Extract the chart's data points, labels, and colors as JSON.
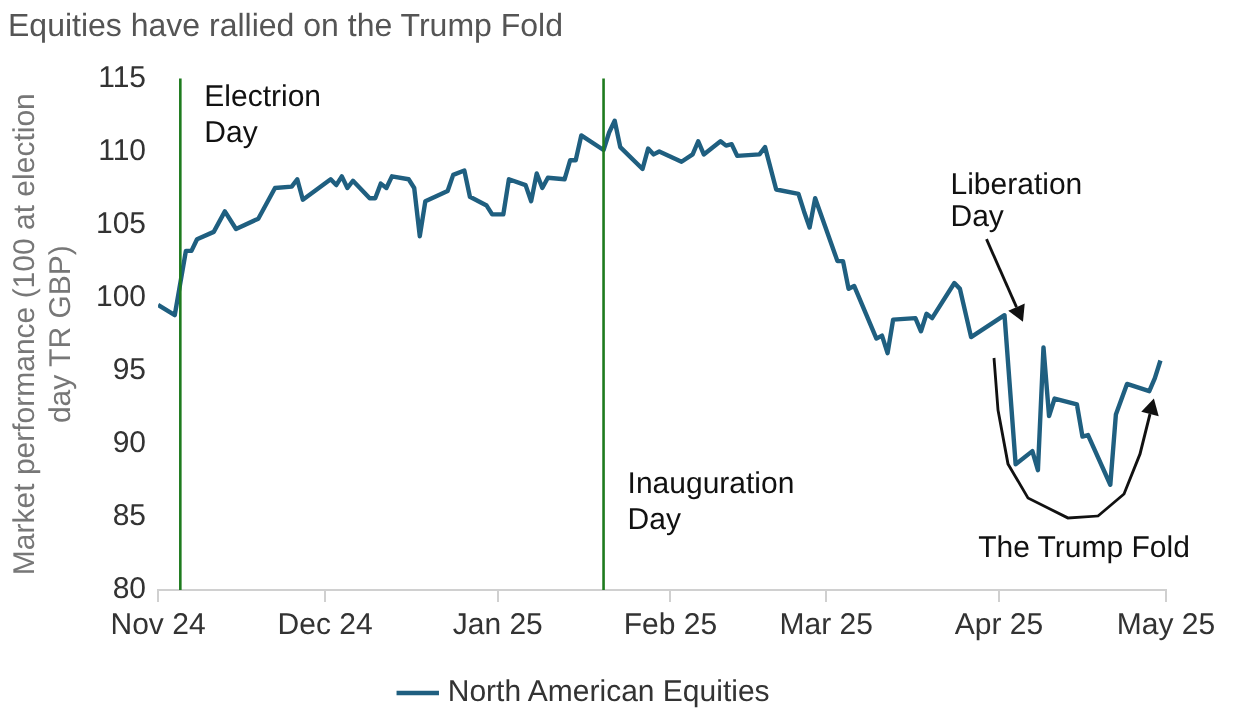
{
  "chart_data": {
    "type": "line",
    "title": "Equities have rallied on the Trump Fold",
    "ylabel": "Market performance (100 at election day TR GBP)",
    "xlim": [
      "2024-11-01",
      "2025-05-01"
    ],
    "xticks": [
      {
        "value": "2024-11-01",
        "label": "Nov 24"
      },
      {
        "value": "2024-12-01",
        "label": "Dec 24"
      },
      {
        "value": "2025-01-01",
        "label": "Jan 25"
      },
      {
        "value": "2025-02-01",
        "label": "Feb 25"
      },
      {
        "value": "2025-03-01",
        "label": "Mar 25"
      },
      {
        "value": "2025-04-01",
        "label": "Apr 25"
      },
      {
        "value": "2025-05-01",
        "label": "May 25"
      }
    ],
    "ylim": [
      80,
      115
    ],
    "yticks": [
      80,
      85,
      90,
      95,
      100,
      105,
      110,
      115
    ],
    "x": [
      "2024-11-01",
      "2024-11-04",
      "2024-11-06",
      "2024-11-07",
      "2024-11-08",
      "2024-11-11",
      "2024-11-13",
      "2024-11-15",
      "2024-11-19",
      "2024-11-22",
      "2024-11-25",
      "2024-11-26",
      "2024-11-27",
      "2024-12-02",
      "2024-12-03",
      "2024-12-04",
      "2024-12-05",
      "2024-12-06",
      "2024-12-09",
      "2024-12-10",
      "2024-12-11",
      "2024-12-12",
      "2024-12-13",
      "2024-12-16",
      "2024-12-17",
      "2024-12-18",
      "2024-12-19",
      "2024-12-23",
      "2024-12-24",
      "2024-12-26",
      "2024-12-27",
      "2024-12-30",
      "2024-12-31",
      "2025-01-02",
      "2025-01-03",
      "2025-01-06",
      "2025-01-07",
      "2025-01-08",
      "2025-01-09",
      "2025-01-10",
      "2025-01-13",
      "2025-01-14",
      "2025-01-15",
      "2025-01-16",
      "2025-01-20",
      "2025-01-21",
      "2025-01-22",
      "2025-01-23",
      "2025-01-27",
      "2025-01-28",
      "2025-01-29",
      "2025-01-30",
      "2025-02-03",
      "2025-02-05",
      "2025-02-06",
      "2025-02-07",
      "2025-02-10",
      "2025-02-11",
      "2025-02-12",
      "2025-02-13",
      "2025-02-17",
      "2025-02-18",
      "2025-02-20",
      "2025-02-24",
      "2025-02-25",
      "2025-02-26",
      "2025-02-27",
      "2025-03-03",
      "2025-03-04",
      "2025-03-05",
      "2025-03-06",
      "2025-03-10",
      "2025-03-11",
      "2025-03-12",
      "2025-03-13",
      "2025-03-17",
      "2025-03-18",
      "2025-03-19",
      "2025-03-20",
      "2025-03-24",
      "2025-03-25",
      "2025-03-27",
      "2025-04-02",
      "2025-04-04",
      "2025-04-07",
      "2025-04-08",
      "2025-04-09",
      "2025-04-10",
      "2025-04-11",
      "2025-04-15",
      "2025-04-16",
      "2025-04-17",
      "2025-04-21",
      "2025-04-22",
      "2025-04-24",
      "2025-04-28",
      "2025-04-29",
      "2025-04-30"
    ],
    "series": [
      {
        "name": "North American Equities",
        "color": "#1f5f80",
        "values": [
          99.5,
          98.8,
          103.2,
          103.2,
          104.0,
          104.5,
          105.9,
          104.7,
          105.4,
          107.5,
          107.6,
          108.1,
          106.7,
          108.1,
          107.7,
          108.3,
          107.5,
          108.0,
          106.8,
          106.8,
          107.8,
          107.5,
          108.3,
          108.1,
          107.5,
          104.2,
          106.6,
          107.3,
          108.4,
          108.7,
          106.9,
          106.3,
          105.7,
          105.7,
          108.1,
          107.7,
          106.6,
          108.5,
          107.5,
          108.2,
          108.1,
          109.4,
          109.4,
          111.1,
          110.1,
          111.3,
          112.1,
          110.3,
          108.8,
          110.2,
          109.8,
          110.0,
          109.3,
          109.8,
          110.7,
          109.8,
          110.7,
          110.4,
          110.5,
          109.7,
          109.8,
          110.3,
          107.4,
          107.1,
          105.9,
          104.8,
          106.8,
          102.5,
          102.5,
          100.6,
          100.8,
          97.2,
          97.4,
          96.2,
          98.5,
          98.6,
          97.7,
          98.9,
          98.6,
          101.0,
          100.6,
          97.3,
          98.8,
          88.6,
          89.5,
          88.2,
          96.6,
          91.9,
          93.1,
          92.7,
          90.5,
          90.6,
          87.2,
          92.0,
          94.1,
          93.6,
          94.5,
          95.7
        ]
      }
    ],
    "ref_lines": [
      {
        "axis": "x",
        "value": "2024-11-05",
        "label": "Electrion Day",
        "color": "#1e7b1e"
      },
      {
        "axis": "x",
        "value": "2025-01-20",
        "label": "Inauguration Day",
        "color": "#1e7b1e"
      }
    ],
    "annotations": [
      {
        "text": "Liberation Day",
        "x": "2025-04-02",
        "y": 98.8
      },
      "The Trump Fold"
    ],
    "legend": "bottom",
    "grid": false
  }
}
